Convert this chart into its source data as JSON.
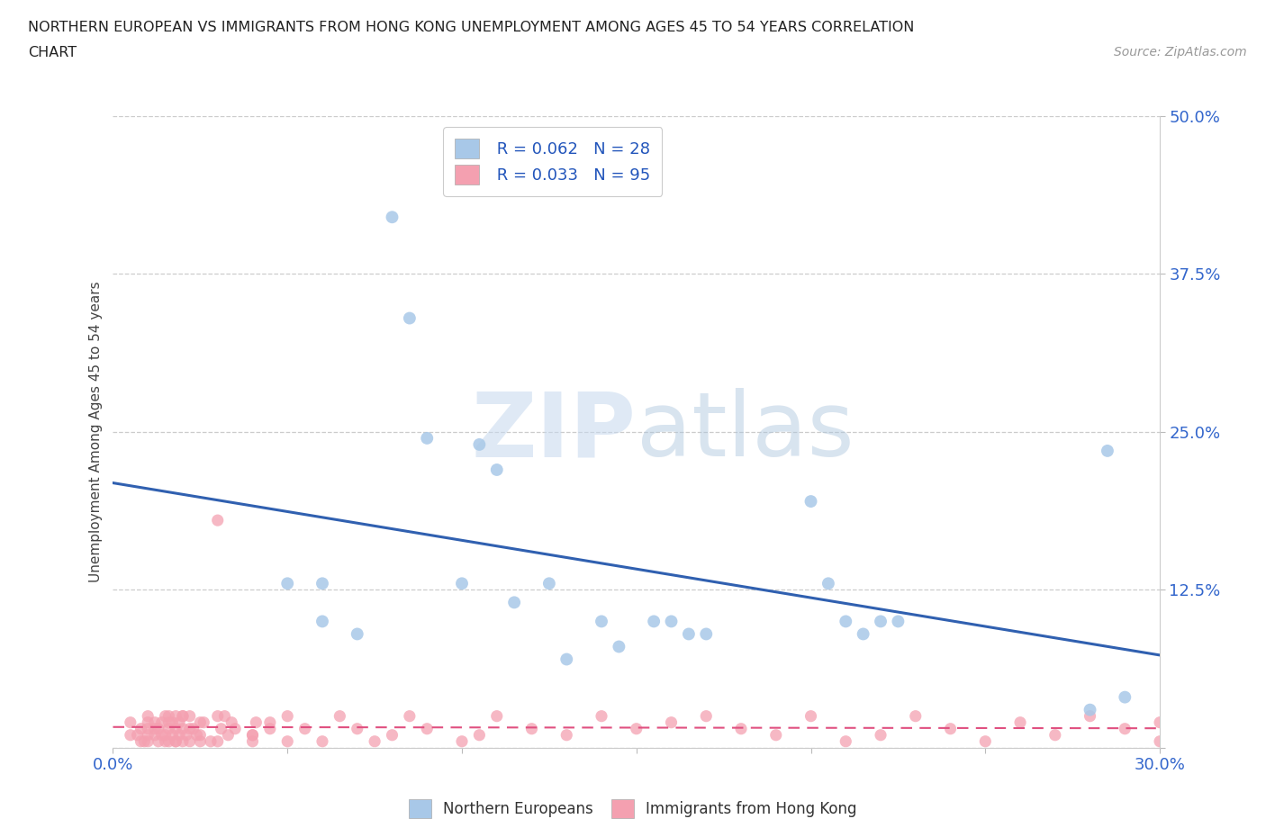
{
  "title_line1": "NORTHERN EUROPEAN VS IMMIGRANTS FROM HONG KONG UNEMPLOYMENT AMONG AGES 45 TO 54 YEARS CORRELATION",
  "title_line2": "CHART",
  "source_text": "Source: ZipAtlas.com",
  "ylabel": "Unemployment Among Ages 45 to 54 years",
  "xlim": [
    0.0,
    0.3
  ],
  "ylim": [
    0.0,
    0.5
  ],
  "xticks": [
    0.0,
    0.05,
    0.1,
    0.15,
    0.2,
    0.25,
    0.3
  ],
  "xticklabels": [
    "0.0%",
    "",
    "",
    "",
    "",
    "",
    "30.0%"
  ],
  "yticks": [
    0.0,
    0.125,
    0.25,
    0.375,
    0.5
  ],
  "yticklabels": [
    "",
    "12.5%",
    "25.0%",
    "37.5%",
    "50.0%"
  ],
  "blue_color": "#a8c8e8",
  "pink_color": "#f4a0b0",
  "blue_line_color": "#3060b0",
  "pink_line_color": "#e05080",
  "legend_r_blue": "R = 0.062",
  "legend_n_blue": "N = 28",
  "legend_r_pink": "R = 0.033",
  "legend_n_pink": "N = 95",
  "watermark_zip": "ZIP",
  "watermark_atlas": "atlas",
  "blue_scatter_x": [
    0.05,
    0.06,
    0.06,
    0.07,
    0.08,
    0.085,
    0.09,
    0.1,
    0.105,
    0.11,
    0.115,
    0.125,
    0.13,
    0.14,
    0.145,
    0.155,
    0.16,
    0.165,
    0.17,
    0.2,
    0.205,
    0.21,
    0.215,
    0.22,
    0.225,
    0.28,
    0.285,
    0.29
  ],
  "blue_scatter_y": [
    0.13,
    0.13,
    0.1,
    0.09,
    0.42,
    0.34,
    0.245,
    0.13,
    0.24,
    0.22,
    0.115,
    0.13,
    0.07,
    0.1,
    0.08,
    0.1,
    0.1,
    0.09,
    0.09,
    0.195,
    0.13,
    0.1,
    0.09,
    0.1,
    0.1,
    0.03,
    0.235,
    0.04
  ],
  "pink_scatter_x": [
    0.005,
    0.007,
    0.008,
    0.009,
    0.01,
    0.01,
    0.01,
    0.01,
    0.012,
    0.012,
    0.013,
    0.013,
    0.014,
    0.015,
    0.015,
    0.015,
    0.016,
    0.016,
    0.016,
    0.017,
    0.017,
    0.018,
    0.018,
    0.018,
    0.019,
    0.019,
    0.02,
    0.02,
    0.02,
    0.021,
    0.022,
    0.022,
    0.023,
    0.025,
    0.025,
    0.025,
    0.03,
    0.03,
    0.031,
    0.032,
    0.033,
    0.034,
    0.04,
    0.04,
    0.041,
    0.045,
    0.05,
    0.055,
    0.06,
    0.065,
    0.07,
    0.075,
    0.08,
    0.085,
    0.09,
    0.1,
    0.105,
    0.11,
    0.12,
    0.13,
    0.14,
    0.15,
    0.16,
    0.17,
    0.18,
    0.19,
    0.2,
    0.21,
    0.22,
    0.23,
    0.24,
    0.25,
    0.26,
    0.27,
    0.28,
    0.29,
    0.3,
    0.3,
    0.005,
    0.008,
    0.01,
    0.012,
    0.014,
    0.016,
    0.018,
    0.02,
    0.022,
    0.024,
    0.026,
    0.028,
    0.03,
    0.035,
    0.04,
    0.045,
    0.05
  ],
  "pink_scatter_y": [
    0.02,
    0.01,
    0.015,
    0.005,
    0.02,
    0.005,
    0.01,
    0.015,
    0.01,
    0.02,
    0.005,
    0.015,
    0.02,
    0.01,
    0.005,
    0.025,
    0.015,
    0.025,
    0.005,
    0.01,
    0.02,
    0.015,
    0.005,
    0.025,
    0.01,
    0.02,
    0.015,
    0.005,
    0.025,
    0.01,
    0.025,
    0.005,
    0.015,
    0.02,
    0.01,
    0.005,
    0.18,
    0.005,
    0.015,
    0.025,
    0.01,
    0.02,
    0.01,
    0.005,
    0.02,
    0.015,
    0.025,
    0.015,
    0.005,
    0.025,
    0.015,
    0.005,
    0.01,
    0.025,
    0.015,
    0.005,
    0.01,
    0.025,
    0.015,
    0.01,
    0.025,
    0.015,
    0.02,
    0.025,
    0.015,
    0.01,
    0.025,
    0.005,
    0.01,
    0.025,
    0.015,
    0.005,
    0.02,
    0.01,
    0.025,
    0.015,
    0.005,
    0.02,
    0.01,
    0.005,
    0.025,
    0.015,
    0.01,
    0.02,
    0.005,
    0.025,
    0.015,
    0.01,
    0.02,
    0.005,
    0.025,
    0.015,
    0.01,
    0.02,
    0.005
  ]
}
